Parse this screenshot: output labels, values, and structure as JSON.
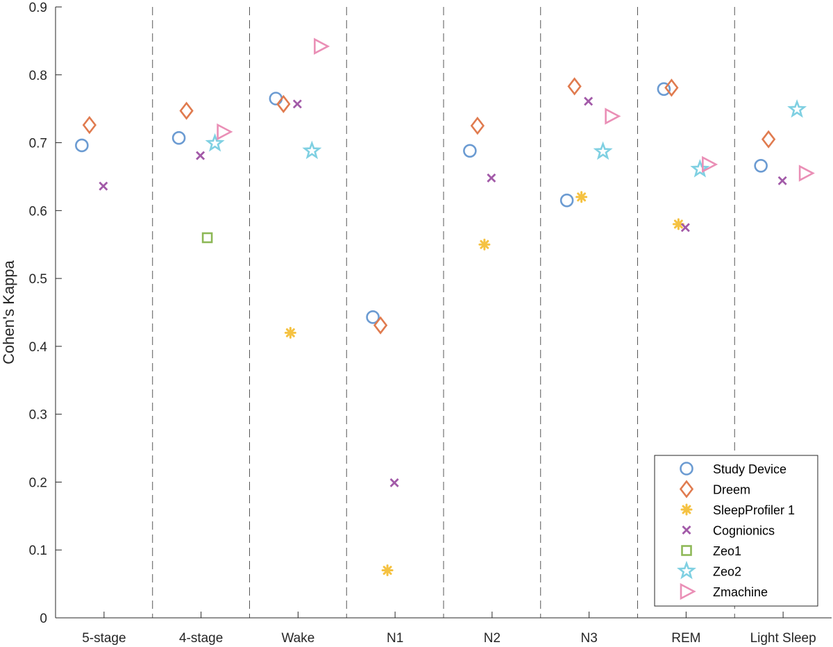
{
  "chart_data": {
    "type": "scatter",
    "title": "",
    "xlabel": "",
    "ylabel": "Cohen's Kappa",
    "categories": [
      "5-stage",
      "4-stage",
      "Wake",
      "N1",
      "N2",
      "N3",
      "REM",
      "Light Sleep"
    ],
    "ylim": [
      0,
      0.9
    ],
    "yticks": [
      "0",
      "0.1",
      "0.2",
      "0.3",
      "0.4",
      "0.5",
      "0.6",
      "0.7",
      "0.8",
      "0.9"
    ],
    "category_separators": "dashed",
    "legend_position": "bottom-right",
    "series": [
      {
        "name": "Study Device",
        "marker": "circle",
        "color": "#6b9bd2",
        "values": [
          0.696,
          0.707,
          0.765,
          0.443,
          0.688,
          0.615,
          0.779,
          0.666
        ]
      },
      {
        "name": "Dreem",
        "marker": "diamond",
        "color": "#e07b4f",
        "values": [
          0.726,
          0.747,
          0.757,
          0.431,
          0.725,
          0.783,
          0.781,
          0.705
        ]
      },
      {
        "name": "SleepProfiler 1",
        "marker": "asterisk",
        "color": "#f5c242",
        "values": [
          null,
          null,
          0.42,
          0.07,
          0.55,
          0.62,
          0.58,
          null
        ]
      },
      {
        "name": "Cognionics",
        "marker": "x",
        "color": "#a25aa8",
        "values": [
          0.636,
          0.681,
          0.757,
          0.199,
          0.648,
          0.761,
          0.575,
          0.644
        ]
      },
      {
        "name": "Zeo1",
        "marker": "square",
        "color": "#8db857",
        "values": [
          null,
          0.56,
          null,
          null,
          null,
          null,
          null,
          null
        ]
      },
      {
        "name": "Zeo2",
        "marker": "star",
        "color": "#7fd0e2",
        "values": [
          null,
          0.699,
          0.688,
          null,
          null,
          0.687,
          0.661,
          0.749
        ]
      },
      {
        "name": "Zmachine",
        "marker": "triangle-right",
        "color": "#ea8fb6",
        "values": [
          null,
          0.716,
          0.842,
          null,
          null,
          0.739,
          0.668,
          0.655
        ]
      }
    ]
  }
}
